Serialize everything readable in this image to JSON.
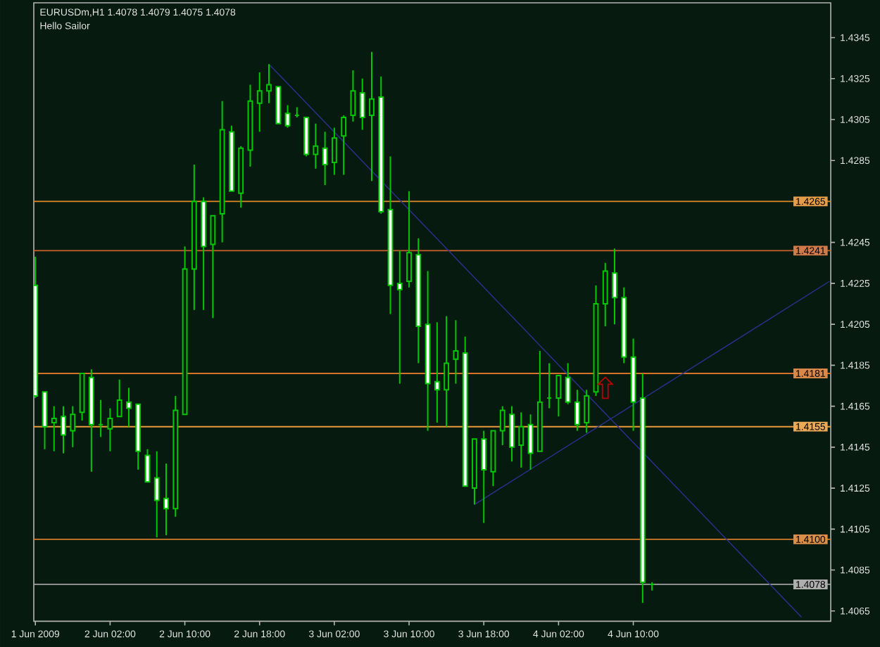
{
  "chart_data": {
    "type": "candlestick",
    "title": "EURUSDm,H1 1.4078 1.4079 1.4075 1.4078",
    "subtitle": "Hello Sailor",
    "x": [
      "2009-06-01T18:00",
      "2009-06-01T19:00",
      "2009-06-01T20:00",
      "2009-06-01T21:00",
      "2009-06-01T22:00",
      "2009-06-01T23:00",
      "2009-06-02T00:00",
      "2009-06-02T01:00",
      "2009-06-02T02:00",
      "2009-06-02T03:00",
      "2009-06-02T04:00",
      "2009-06-02T05:00",
      "2009-06-02T06:00",
      "2009-06-02T07:00",
      "2009-06-02T08:00",
      "2009-06-02T09:00",
      "2009-06-02T10:00",
      "2009-06-02T11:00",
      "2009-06-02T12:00",
      "2009-06-02T13:00",
      "2009-06-02T14:00",
      "2009-06-02T15:00",
      "2009-06-02T16:00",
      "2009-06-02T17:00",
      "2009-06-02T18:00",
      "2009-06-02T19:00",
      "2009-06-02T20:00",
      "2009-06-02T21:00",
      "2009-06-02T22:00",
      "2009-06-02T23:00",
      "2009-06-03T00:00",
      "2009-06-03T01:00",
      "2009-06-03T02:00",
      "2009-06-03T03:00",
      "2009-06-03T04:00",
      "2009-06-03T05:00",
      "2009-06-03T06:00",
      "2009-06-03T07:00",
      "2009-06-03T08:00",
      "2009-06-03T09:00",
      "2009-06-03T10:00",
      "2009-06-03T11:00",
      "2009-06-03T12:00",
      "2009-06-03T13:00",
      "2009-06-03T14:00",
      "2009-06-03T15:00",
      "2009-06-03T16:00",
      "2009-06-03T17:00",
      "2009-06-03T18:00",
      "2009-06-03T19:00",
      "2009-06-03T20:00",
      "2009-06-03T21:00",
      "2009-06-03T22:00",
      "2009-06-03T23:00",
      "2009-06-04T00:00",
      "2009-06-04T01:00",
      "2009-06-04T02:00",
      "2009-06-04T03:00",
      "2009-06-04T04:00",
      "2009-06-04T05:00",
      "2009-06-04T06:00",
      "2009-06-04T07:00",
      "2009-06-04T08:00",
      "2009-06-04T09:00",
      "2009-06-04T10:00",
      "2009-06-04T11:00",
      "2009-06-04T12:00"
    ],
    "ohlc": [
      [
        1.4224,
        1.4238,
        1.4169,
        1.417
      ],
      [
        1.4172,
        1.4172,
        1.4144,
        1.4155
      ],
      [
        1.4157,
        1.4165,
        1.4143,
        1.4159
      ],
      [
        1.416,
        1.4165,
        1.4142,
        1.4151
      ],
      [
        1.4153,
        1.4165,
        1.4145,
        1.4161
      ],
      [
        1.4162,
        1.4181,
        1.4158,
        1.4181
      ],
      [
        1.4179,
        1.4183,
        1.4133,
        1.4156
      ],
      [
        1.4156,
        1.4168,
        1.415,
        1.4156
      ],
      [
        1.4154,
        1.4164,
        1.4143,
        1.4159
      ],
      [
        1.416,
        1.4178,
        1.416,
        1.4168
      ],
      [
        1.4167,
        1.4174,
        1.4155,
        1.4164
      ],
      [
        1.4166,
        1.4166,
        1.4134,
        1.4143
      ],
      [
        1.4141,
        1.4144,
        1.4128,
        1.4128
      ],
      [
        1.413,
        1.4143,
        1.4101,
        1.4119
      ],
      [
        1.412,
        1.4137,
        1.4102,
        1.4115
      ],
      [
        1.4115,
        1.417,
        1.4111,
        1.4163
      ],
      [
        1.4161,
        1.4243,
        1.4161,
        1.4232
      ],
      [
        1.4232,
        1.4283,
        1.4212,
        1.4265
      ],
      [
        1.4265,
        1.4267,
        1.4212,
        1.4243
      ],
      [
        1.4244,
        1.4258,
        1.4208,
        1.4258
      ],
      [
        1.4259,
        1.4314,
        1.4245,
        1.43
      ],
      [
        1.4299,
        1.4302,
        1.427,
        1.427
      ],
      [
        1.4269,
        1.4292,
        1.4262,
        1.4291
      ],
      [
        1.429,
        1.4322,
        1.4282,
        1.4314
      ],
      [
        1.4313,
        1.4328,
        1.4299,
        1.4319
      ],
      [
        1.4319,
        1.4332,
        1.4313,
        1.4322
      ],
      [
        1.4321,
        1.4321,
        1.4303,
        1.4303
      ],
      [
        1.4308,
        1.4312,
        1.4301,
        1.4302
      ],
      [
        1.4307,
        1.4311,
        1.4306,
        1.4307
      ],
      [
        1.4306,
        1.4306,
        1.4287,
        1.4288
      ],
      [
        1.4288,
        1.4303,
        1.4281,
        1.4292
      ],
      [
        1.4291,
        1.4299,
        1.4273,
        1.4283
      ],
      [
        1.4284,
        1.4301,
        1.4278,
        1.4296
      ],
      [
        1.4297,
        1.4307,
        1.4278,
        1.4306
      ],
      [
        1.4307,
        1.4329,
        1.4304,
        1.4319
      ],
      [
        1.4318,
        1.4325,
        1.43,
        1.4306
      ],
      [
        1.4307,
        1.4338,
        1.4275,
        1.4315
      ],
      [
        1.4316,
        1.4326,
        1.4259,
        1.426
      ],
      [
        1.4261,
        1.4287,
        1.421,
        1.4224
      ],
      [
        1.4225,
        1.4241,
        1.4176,
        1.4222
      ],
      [
        1.4226,
        1.427,
        1.4223,
        1.424
      ],
      [
        1.4239,
        1.4247,
        1.4186,
        1.4204
      ],
      [
        1.4205,
        1.4231,
        1.4153,
        1.4176
      ],
      [
        1.4177,
        1.4206,
        1.4157,
        1.4173
      ],
      [
        1.4173,
        1.4209,
        1.4155,
        1.4186
      ],
      [
        1.4188,
        1.4207,
        1.4176,
        1.4192
      ],
      [
        1.4191,
        1.4199,
        1.4126,
        1.4126
      ],
      [
        1.4125,
        1.4149,
        1.4117,
        1.4149
      ],
      [
        1.4149,
        1.4153,
        1.4108,
        1.4134
      ],
      [
        1.4133,
        1.4153,
        1.4126,
        1.4153
      ],
      [
        1.4153,
        1.4165,
        1.4146,
        1.4163
      ],
      [
        1.4161,
        1.4165,
        1.4138,
        1.4145
      ],
      [
        1.4146,
        1.4162,
        1.4135,
        1.4155
      ],
      [
        1.4156,
        1.4161,
        1.4134,
        1.4142
      ],
      [
        1.4143,
        1.4192,
        1.4143,
        1.4167
      ],
      [
        1.4169,
        1.4186,
        1.4164,
        1.4169
      ],
      [
        1.4169,
        1.418,
        1.416,
        1.418
      ],
      [
        1.4179,
        1.4186,
        1.4166,
        1.4167
      ],
      [
        1.4167,
        1.4173,
        1.4153,
        1.4156
      ],
      [
        1.4157,
        1.4173,
        1.4152,
        1.417
      ],
      [
        1.4172,
        1.4224,
        1.417,
        1.4215
      ],
      [
        1.4215,
        1.4235,
        1.4204,
        1.4231
      ],
      [
        1.423,
        1.4242,
        1.4205,
        1.4218
      ],
      [
        1.4218,
        1.4223,
        1.4186,
        1.4189
      ],
      [
        1.4189,
        1.4198,
        1.4153,
        1.4167
      ],
      [
        1.4169,
        1.4181,
        1.4069,
        1.4079
      ],
      [
        1.4078,
        1.4079,
        1.4075,
        1.4078
      ]
    ],
    "color": "#00c800",
    "colors": [
      "#ffffff",
      "#ffffff",
      "#061a10",
      "#ffffff",
      "#061a10",
      "#061a10",
      "#ffffff",
      "#00c800",
      "#061a10",
      "#061a10",
      "#ffffff",
      "#ffffff",
      "#ffffff",
      "#ffffff",
      "#ffffff",
      "#061a10",
      "#061a10",
      "#061a10",
      "#ffffff",
      "#061a10",
      "#061a10",
      "#ffffff",
      "#061a10",
      "#061a10",
      "#061a10",
      "#061a10",
      "#ffffff",
      "#ffffff",
      "#00c800",
      "#ffffff",
      "#061a10",
      "#ffffff",
      "#061a10",
      "#061a10",
      "#061a10",
      "#ffffff",
      "#061a10",
      "#ffffff",
      "#ffffff",
      "#ffffff",
      "#061a10",
      "#ffffff",
      "#ffffff",
      "#ffffff",
      "#061a10",
      "#061a10",
      "#ffffff",
      "#061a10",
      "#ffffff",
      "#061a10",
      "#061a10",
      "#ffffff",
      "#061a10",
      "#ffffff",
      "#061a10",
      "#00c800",
      "#061a10",
      "#ffffff",
      "#ffffff",
      "#061a10",
      "#061a10",
      "#061a10",
      "#ffffff",
      "#ffffff",
      "#ffffff",
      "#ffffff",
      "#00c800"
    ],
    "series": [
      {
        "type": "line",
        "x": [
          "2009-06-02T19:00",
          "2009-06-05T04:00"
        ],
        "values": [
          1.4332,
          1.4062
        ],
        "color": "#2e3192"
      },
      {
        "type": "line",
        "x": [
          "2009-06-03T17:00",
          "2009-06-05T07:00"
        ],
        "values": [
          1.4117,
          1.4226
        ],
        "color": "#2e3192"
      },
      {
        "type": "scatter",
        "x": [
          "2009-06-04T07:00"
        ],
        "values": [
          1.4174
        ],
        "color": "#c00000",
        "marker": "triangle"
      }
    ],
    "xlim": [
      "2009-06-01T17:50",
      "2009-06-05T07:08"
    ],
    "ylim": [
      1.406,
      1.4362
    ],
    "xticks": [
      {
        "value": "2009-06-01T18:00",
        "label": "1 Jun 2009"
      },
      {
        "value": "2009-06-02T02:00",
        "label": "2 Jun 02:00"
      },
      {
        "value": "2009-06-02T10:00",
        "label": "2 Jun 10:00"
      },
      {
        "value": "2009-06-02T18:00",
        "label": "2 Jun 18:00"
      },
      {
        "value": "2009-06-03T02:00",
        "label": "3 Jun 02:00"
      },
      {
        "value": "2009-06-03T10:00",
        "label": "3 Jun 10:00"
      },
      {
        "value": "2009-06-03T18:00",
        "label": "3 Jun 18:00"
      },
      {
        "value": "2009-06-04T02:00",
        "label": "4 Jun 02:00"
      },
      {
        "value": "2009-06-04T10:00",
        "label": "4 Jun 10:00"
      }
    ],
    "yticks": [
      1.4065,
      1.4085,
      1.4105,
      1.4125,
      1.4145,
      1.4165,
      1.4185,
      1.4205,
      1.4225,
      1.4245,
      1.4285,
      1.4305,
      1.4325,
      1.4345
    ],
    "ref_lines": [
      {
        "axis": "y",
        "value": 1.4265,
        "label": "1.4265",
        "color": "#e08a28"
      },
      {
        "axis": "y",
        "value": 1.4241,
        "label": "1.4241",
        "color": "#c8622a"
      },
      {
        "axis": "y",
        "value": 1.4181,
        "label": "1.4181",
        "color": "#d4722a"
      },
      {
        "axis": "y",
        "value": 1.4155,
        "label": "1.4155",
        "color": "#e89a38"
      },
      {
        "axis": "y",
        "value": 1.41,
        "label": "1.4100",
        "color": "#d47a28"
      },
      {
        "axis": "y",
        "value": 1.4078,
        "label": "1.4078",
        "color": "#a0a0a0"
      }
    ]
  }
}
